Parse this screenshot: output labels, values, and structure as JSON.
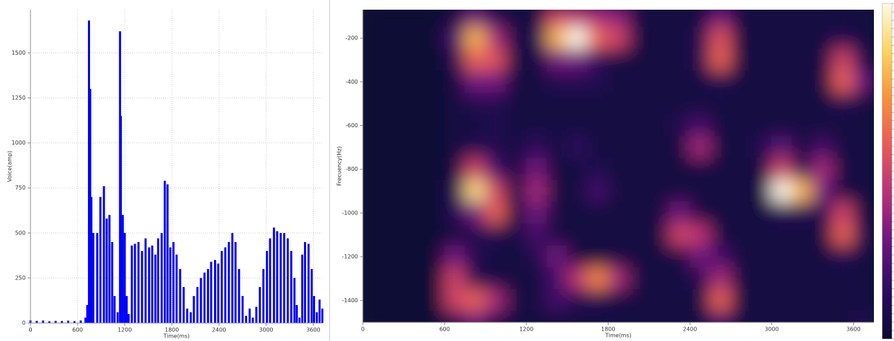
{
  "chart_data": [
    {
      "type": "stem",
      "xlabel": "Time(ms)",
      "ylabel": "Voice(amp)",
      "color": "#0000ff",
      "grid": true,
      "xlim": [
        0,
        3720
      ],
      "ylim": [
        0,
        1740
      ],
      "xticks": [
        0,
        600,
        1200,
        1800,
        2400,
        3000,
        3600
      ],
      "yticks": [
        0,
        250,
        500,
        750,
        1000,
        1250,
        1500
      ],
      "x": [
        0,
        80,
        160,
        240,
        320,
        400,
        480,
        560,
        640,
        700,
        723,
        745,
        760,
        775,
        800,
        850,
        890,
        935,
        970,
        1005,
        1040,
        1070,
        1110,
        1140,
        1150,
        1175,
        1200,
        1225,
        1250,
        1290,
        1330,
        1375,
        1420,
        1465,
        1510,
        1550,
        1590,
        1625,
        1670,
        1710,
        1745,
        1780,
        1820,
        1860,
        1905,
        1950,
        1995,
        2040,
        2080,
        2125,
        2170,
        2215,
        2260,
        2300,
        2350,
        2390,
        2435,
        2480,
        2525,
        2570,
        2610,
        2655,
        2700,
        2745,
        2790,
        2830,
        2875,
        2920,
        2965,
        3010,
        3050,
        3100,
        3140,
        3185,
        3230,
        3275,
        3320,
        3360,
        3390,
        3425,
        3460,
        3495,
        3540,
        3580,
        3610,
        3645,
        3680,
        3715
      ],
      "values": [
        15,
        12,
        14,
        10,
        12,
        11,
        13,
        10,
        14,
        30,
        100,
        1680,
        1300,
        700,
        500,
        500,
        700,
        760,
        580,
        600,
        450,
        150,
        60,
        1620,
        1150,
        600,
        500,
        150,
        50,
        430,
        440,
        450,
        400,
        470,
        420,
        430,
        380,
        470,
        500,
        790,
        770,
        420,
        450,
        380,
        300,
        200,
        80,
        60,
        150,
        200,
        250,
        280,
        300,
        340,
        350,
        330,
        400,
        420,
        450,
        500,
        450,
        300,
        150,
        40,
        80,
        30,
        90,
        200,
        300,
        400,
        470,
        530,
        510,
        500,
        500,
        470,
        400,
        250,
        100,
        30,
        380,
        450,
        440,
        300,
        150,
        60,
        130,
        80
      ]
    },
    {
      "type": "heatmap",
      "xlabel": "Time(ms)",
      "ylabel": "Frecuency(Hz)",
      "xlim": [
        0,
        3750
      ],
      "ylim": [
        -1500,
        -70
      ],
      "xticks": [
        0,
        600,
        1200,
        1800,
        2400,
        3000,
        3600
      ],
      "yticks": [
        -200,
        -400,
        -600,
        -800,
        -1000,
        -1200,
        -1400
      ],
      "colormap": [
        "#0b0b34",
        "#2a0b5e",
        "#6a1480",
        "#b5307a",
        "#e8585a",
        "#f98e3a",
        "#fcd35c",
        "#fffbe8"
      ],
      "x": [
        75,
        225,
        375,
        525,
        675,
        825,
        975,
        1125,
        1275,
        1425,
        1575,
        1725,
        1875,
        2025,
        2175,
        2325,
        2475,
        2625,
        2775,
        2925,
        3075,
        3225,
        3375,
        3525,
        3675
      ],
      "y": [
        -100,
        -200,
        -300,
        -400,
        -500,
        -600,
        -700,
        -800,
        -900,
        -1000,
        -1100,
        -1200,
        -1300,
        -1400,
        -1500
      ],
      "z": [
        [
          0,
          0,
          0,
          0,
          0.05,
          0.3,
          0.1,
          0.05,
          0.05,
          0.5,
          0.45,
          0.4,
          0.35,
          0.05,
          0.05,
          0.05,
          0.05,
          0.3,
          0.05,
          0.05,
          0.05,
          0.05,
          0.05,
          0.05,
          0.05
        ],
        [
          0,
          0,
          0,
          0,
          0.2,
          0.8,
          0.4,
          0.05,
          0.1,
          0.8,
          1,
          0.6,
          0.5,
          0.05,
          0.05,
          0.05,
          0.1,
          0.55,
          0.05,
          0.05,
          0.05,
          0.05,
          0.05,
          0.1,
          0.05
        ],
        [
          0,
          0,
          0,
          0,
          0.1,
          0.6,
          0.55,
          0.05,
          0.05,
          0.3,
          0.3,
          0.15,
          0.05,
          0.05,
          0.05,
          0.05,
          0.1,
          0.6,
          0.05,
          0.05,
          0.05,
          0.05,
          0.05,
          0.5,
          0.1
        ],
        [
          0,
          0,
          0,
          0,
          0.05,
          0.3,
          0.3,
          0.05,
          0.05,
          0.1,
          0.1,
          0.1,
          0.05,
          0.05,
          0.05,
          0.05,
          0.05,
          0.1,
          0.05,
          0.05,
          0.05,
          0.05,
          0.05,
          0.6,
          0.3
        ],
        [
          0,
          0,
          0,
          0,
          0.05,
          0.1,
          0.1,
          0.05,
          0.05,
          0.05,
          0.05,
          0.05,
          0.05,
          0.05,
          0.05,
          0.05,
          0.05,
          0.05,
          0.05,
          0.05,
          0.05,
          0.05,
          0.05,
          0.1,
          0.05
        ],
        [
          0,
          0,
          0,
          0,
          0.05,
          0.05,
          0.1,
          0.05,
          0.05,
          0.05,
          0.05,
          0.05,
          0.05,
          0.05,
          0.05,
          0.1,
          0.2,
          0.05,
          0.05,
          0.05,
          0.05,
          0.05,
          0.05,
          0.05,
          0.05
        ],
        [
          0,
          0,
          0,
          0,
          0.05,
          0.1,
          0.1,
          0.05,
          0.15,
          0.05,
          0.15,
          0.05,
          0.05,
          0.05,
          0.05,
          0.05,
          0.4,
          0.05,
          0.05,
          0.1,
          0.25,
          0.05,
          0.2,
          0.05,
          0.05
        ],
        [
          0,
          0,
          0,
          0,
          0.05,
          0.5,
          0.2,
          0.05,
          0.3,
          0.05,
          0.05,
          0.1,
          0.05,
          0.05,
          0.05,
          0.05,
          0.05,
          0.05,
          0.05,
          0.05,
          0.5,
          0.1,
          0.4,
          0.05,
          0.05
        ],
        [
          0,
          0,
          0,
          0,
          0.1,
          0.9,
          0.5,
          0.05,
          0.4,
          0.05,
          0.05,
          0.2,
          0.05,
          0.05,
          0.05,
          0.05,
          0.05,
          0.05,
          0.05,
          0.05,
          1,
          0.8,
          0.3,
          0.05,
          0.05
        ],
        [
          0,
          0,
          0,
          0,
          0.1,
          0.3,
          0.6,
          0.05,
          0.3,
          0.05,
          0.05,
          0.05,
          0.05,
          0.05,
          0.05,
          0.3,
          0.05,
          0.05,
          0.05,
          0.05,
          0.1,
          0.1,
          0.1,
          0.5,
          0.05
        ],
        [
          0,
          0,
          0,
          0,
          0.05,
          0.1,
          0.1,
          0.05,
          0.2,
          0.05,
          0.05,
          0.05,
          0.05,
          0.05,
          0.05,
          0.5,
          0.45,
          0.05,
          0.05,
          0.05,
          0.05,
          0.05,
          0.05,
          0.6,
          0.1
        ],
        [
          0,
          0,
          0,
          0,
          0.3,
          0.1,
          0.05,
          0.05,
          0.1,
          0.3,
          0.05,
          0.05,
          0.05,
          0.05,
          0.05,
          0.05,
          0.3,
          0.2,
          0.05,
          0.05,
          0.05,
          0.05,
          0.05,
          0.1,
          0.05
        ],
        [
          0,
          0,
          0,
          0,
          0.5,
          0.1,
          0.05,
          0.05,
          0.05,
          0.2,
          0.45,
          0.7,
          0.4,
          0.05,
          0.05,
          0.05,
          0.1,
          0.4,
          0.05,
          0.05,
          0.05,
          0.05,
          0.05,
          0.05,
          0.05
        ],
        [
          0,
          0,
          0,
          0,
          0.5,
          0.6,
          0.4,
          0.05,
          0.05,
          0.2,
          0.1,
          0.1,
          0.05,
          0.05,
          0.05,
          0.05,
          0.05,
          0.6,
          0.05,
          0.05,
          0.05,
          0.05,
          0.05,
          0.05,
          0.05
        ],
        [
          0,
          0,
          0,
          0,
          0.1,
          0.3,
          0.1,
          0.05,
          0.05,
          0.05,
          0.05,
          0.05,
          0.05,
          0.05,
          0.05,
          0.05,
          0.05,
          0.2,
          0.05,
          0.05,
          0.05,
          0.05,
          0.05,
          0.05,
          0.1
        ]
      ]
    }
  ]
}
